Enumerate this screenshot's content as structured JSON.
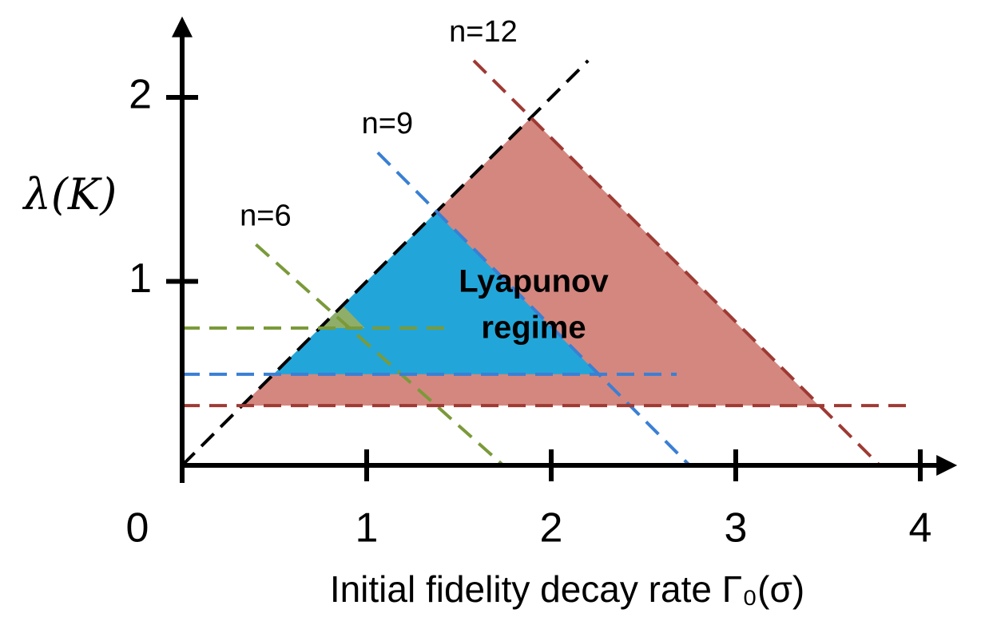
{
  "chart_data": {
    "type": "regime",
    "xlabel": "Initial fidelity decay rate Γ₀(σ)",
    "ylabel": "λ(K)",
    "annotation": [
      "Lyapunov",
      "regime"
    ],
    "xlim": [
      0,
      4.2
    ],
    "ylim": [
      0,
      2.44
    ],
    "xticks": [
      0,
      1,
      2,
      3,
      4
    ],
    "yticks": [
      1,
      2
    ],
    "regions": [
      {
        "color": "#d4877f",
        "x": [
          0.325,
          1.89,
          3.45
        ],
        "y": [
          0.325,
          1.89,
          0.325
        ]
      },
      {
        "color": "#22a6d9",
        "x": [
          0.495,
          1.375,
          2.255
        ],
        "y": [
          0.495,
          1.375,
          0.495
        ]
      },
      {
        "color": "#8fae6a",
        "x": [
          0.746,
          0.87,
          0.99
        ],
        "y": [
          0.746,
          0.87,
          0.746
        ]
      }
    ],
    "series": [
      {
        "color": "#000000",
        "x": [
          0,
          2.2
        ],
        "y": [
          0,
          2.2
        ]
      },
      {
        "name": "n=12",
        "color": "#9e3a34",
        "x": [
          1.58,
          3.78
        ],
        "y": [
          2.2,
          0
        ]
      },
      {
        "name": "n=9",
        "color": "#3a7fd4",
        "x": [
          1.06,
          2.75
        ],
        "y": [
          1.7,
          0
        ]
      },
      {
        "name": "n=6",
        "color": "#7a9a3a",
        "x": [
          0.4,
          1.74
        ],
        "y": [
          1.2,
          0
        ]
      },
      {
        "color": "#9e3a34",
        "x": [
          0,
          3.94
        ],
        "y": [
          0.325,
          0.325
        ]
      },
      {
        "color": "#3a7fd4",
        "x": [
          0,
          2.68
        ],
        "y": [
          0.495,
          0.495
        ]
      },
      {
        "color": "#7a9a3a",
        "x": [
          0,
          1.42
        ],
        "y": [
          0.746,
          0.746
        ]
      }
    ]
  }
}
